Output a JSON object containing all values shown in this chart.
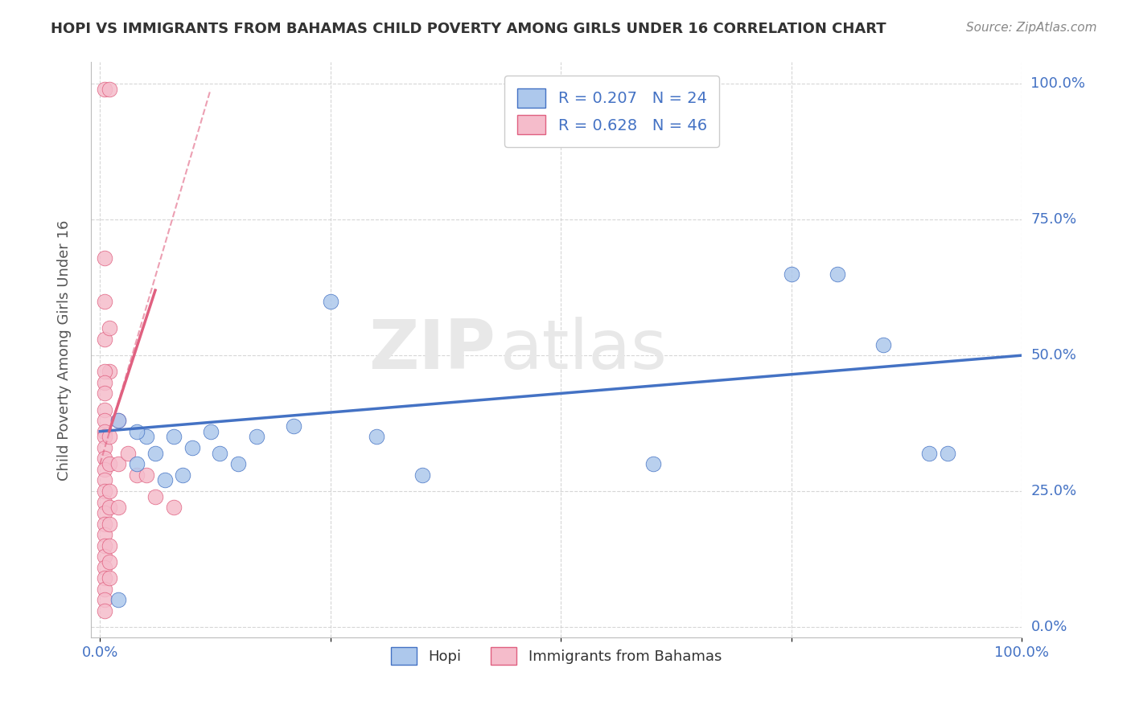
{
  "title": "HOPI VS IMMIGRANTS FROM BAHAMAS CHILD POVERTY AMONG GIRLS UNDER 16 CORRELATION CHART",
  "source": "Source: ZipAtlas.com",
  "ylabel": "Child Poverty Among Girls Under 16",
  "xlabel": "",
  "xlim": [
    -0.01,
    1.0
  ],
  "ylim": [
    -0.02,
    1.04
  ],
  "xtick_labels": [
    "0.0%",
    "",
    "",
    "",
    "100.0%"
  ],
  "ytick_labels": [
    "",
    "",
    "",
    "",
    ""
  ],
  "ytick_right_labels": [
    "100.0%",
    "75.0%",
    "50.0%",
    "25.0%",
    ""
  ],
  "xtick_values": [
    0.0,
    0.25,
    0.5,
    0.75,
    1.0
  ],
  "ytick_values": [
    0.0,
    0.25,
    0.5,
    0.75,
    1.0
  ],
  "hopi_color": "#adc8ec",
  "bahamas_color": "#f5bccb",
  "hopi_line_color": "#4472c4",
  "bahamas_line_color": "#e06080",
  "legend_hopi_color": "#adc8ec",
  "legend_bahamas_color": "#f5bccb",
  "R_hopi": 0.207,
  "N_hopi": 24,
  "R_bahamas": 0.628,
  "N_bahamas": 46,
  "watermark_zip": "ZIP",
  "watermark_atlas": "atlas",
  "background_color": "#ffffff",
  "grid_color": "#cccccc",
  "hopi_scatter": [
    [
      0.02,
      0.05
    ],
    [
      0.02,
      0.38
    ],
    [
      0.05,
      0.35
    ],
    [
      0.06,
      0.32
    ],
    [
      0.08,
      0.35
    ],
    [
      0.1,
      0.33
    ],
    [
      0.12,
      0.36
    ],
    [
      0.15,
      0.3
    ],
    [
      0.17,
      0.35
    ],
    [
      0.21,
      0.37
    ],
    [
      0.25,
      0.6
    ],
    [
      0.3,
      0.35
    ],
    [
      0.35,
      0.28
    ],
    [
      0.6,
      0.3
    ],
    [
      0.75,
      0.65
    ],
    [
      0.8,
      0.65
    ],
    [
      0.85,
      0.52
    ],
    [
      0.9,
      0.32
    ],
    [
      0.92,
      0.32
    ],
    [
      0.04,
      0.36
    ],
    [
      0.04,
      0.3
    ],
    [
      0.07,
      0.27
    ],
    [
      0.09,
      0.28
    ],
    [
      0.13,
      0.32
    ]
  ],
  "bahamas_scatter": [
    [
      0.005,
      0.99
    ],
    [
      0.01,
      0.99
    ],
    [
      0.005,
      0.68
    ],
    [
      0.005,
      0.6
    ],
    [
      0.005,
      0.53
    ],
    [
      0.01,
      0.55
    ],
    [
      0.01,
      0.47
    ],
    [
      0.005,
      0.47
    ],
    [
      0.005,
      0.45
    ],
    [
      0.005,
      0.43
    ],
    [
      0.005,
      0.4
    ],
    [
      0.005,
      0.38
    ],
    [
      0.005,
      0.36
    ],
    [
      0.005,
      0.35
    ],
    [
      0.005,
      0.33
    ],
    [
      0.005,
      0.31
    ],
    [
      0.005,
      0.29
    ],
    [
      0.005,
      0.27
    ],
    [
      0.005,
      0.25
    ],
    [
      0.005,
      0.23
    ],
    [
      0.005,
      0.21
    ],
    [
      0.005,
      0.19
    ],
    [
      0.005,
      0.17
    ],
    [
      0.005,
      0.15
    ],
    [
      0.005,
      0.13
    ],
    [
      0.005,
      0.11
    ],
    [
      0.005,
      0.09
    ],
    [
      0.005,
      0.07
    ],
    [
      0.005,
      0.05
    ],
    [
      0.005,
      0.03
    ],
    [
      0.01,
      0.35
    ],
    [
      0.01,
      0.3
    ],
    [
      0.01,
      0.25
    ],
    [
      0.01,
      0.22
    ],
    [
      0.01,
      0.19
    ],
    [
      0.01,
      0.15
    ],
    [
      0.01,
      0.12
    ],
    [
      0.01,
      0.09
    ],
    [
      0.02,
      0.38
    ],
    [
      0.02,
      0.3
    ],
    [
      0.02,
      0.22
    ],
    [
      0.03,
      0.32
    ],
    [
      0.04,
      0.28
    ],
    [
      0.05,
      0.28
    ],
    [
      0.06,
      0.24
    ],
    [
      0.08,
      0.22
    ]
  ],
  "hopi_trendline": [
    [
      0.0,
      0.36
    ],
    [
      1.0,
      0.5
    ]
  ],
  "bahamas_trendline_solid": [
    [
      0.01,
      0.36
    ],
    [
      0.06,
      0.62
    ]
  ],
  "bahamas_trendline_dashed": [
    [
      0.0,
      0.3
    ],
    [
      0.12,
      0.99
    ]
  ]
}
